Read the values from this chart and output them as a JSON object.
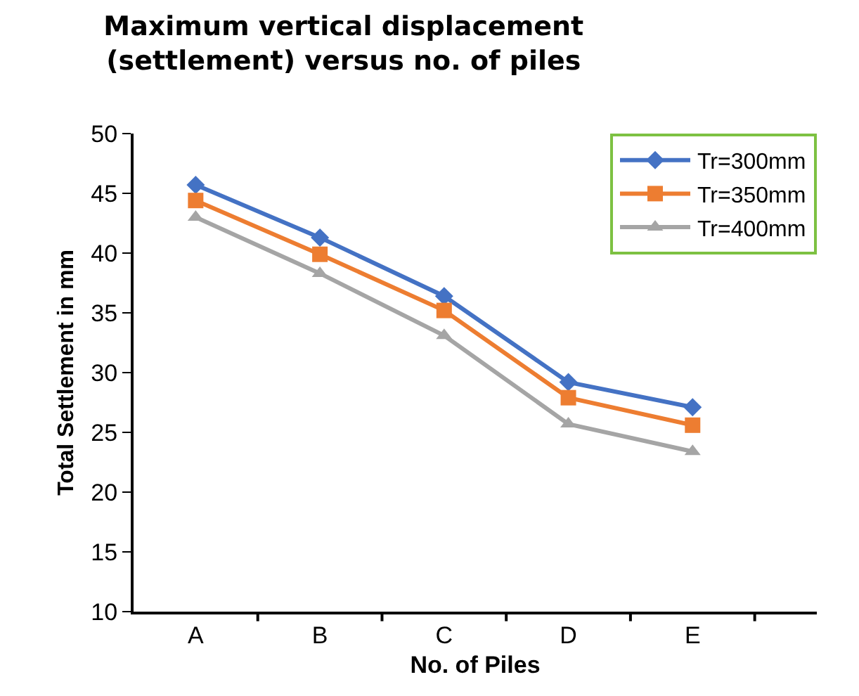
{
  "chart_data": {
    "type": "line",
    "title": "Maximum vertical displacement\n(settlement) versus no. of piles",
    "xlabel": "No. of Piles",
    "ylabel": "Total Settlement in mm",
    "categories": [
      "A",
      "B",
      "C",
      "D",
      "E"
    ],
    "series": [
      {
        "name": "Tr=300mm",
        "color": "#4472c4",
        "marker": "diamond",
        "values": [
          45.7,
          41.3,
          36.4,
          29.2,
          27.1
        ]
      },
      {
        "name": "Tr=350mm",
        "color": "#ed7d31",
        "marker": "square",
        "values": [
          44.4,
          39.9,
          35.2,
          27.9,
          25.6
        ]
      },
      {
        "name": "Tr=400mm",
        "color": "#a5a5a5",
        "marker": "triangle",
        "values": [
          43.0,
          38.3,
          33.1,
          25.7,
          23.4
        ]
      }
    ],
    "ylim": [
      10,
      50
    ],
    "yticks": [
      10,
      15,
      20,
      25,
      30,
      35,
      40,
      45,
      50
    ],
    "grid": false,
    "legend": "top right",
    "line_style": "solid"
  }
}
